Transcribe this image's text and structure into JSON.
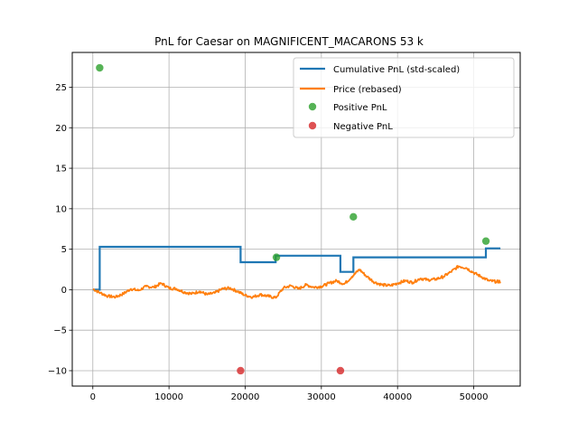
{
  "chart_data": {
    "type": "line",
    "title": "PnL for Caesar on MAGNIFICENT_MACARONS 53 k",
    "xlabel": "",
    "ylabel": "",
    "xlim": [
      -2700,
      56100
    ],
    "ylim": [
      -11.9,
      29.3
    ],
    "xticks": [
      0,
      10000,
      20000,
      30000,
      40000,
      50000
    ],
    "yticks": [
      -10,
      -5,
      0,
      5,
      10,
      15,
      20,
      25
    ],
    "grid": true,
    "legend_position": "top-right",
    "colors": {
      "cumulative": "#1f77b4",
      "price": "#ff7f0e",
      "positive": "#2ca02c",
      "negative": "#d62728"
    },
    "series": [
      {
        "name": "Cumulative PnL (std-scaled)",
        "type": "step",
        "points": [
          [
            0,
            0
          ],
          [
            900,
            0
          ],
          [
            900,
            5.3
          ],
          [
            19400,
            5.3
          ],
          [
            19400,
            3.4
          ],
          [
            24000,
            3.4
          ],
          [
            24000,
            4.2
          ],
          [
            32500,
            4.2
          ],
          [
            32500,
            2.2
          ],
          [
            34200,
            2.2
          ],
          [
            34200,
            4.0
          ],
          [
            51600,
            4.0
          ],
          [
            51600,
            5.1
          ],
          [
            53500,
            5.1
          ]
        ]
      },
      {
        "name": "Price (rebased)",
        "type": "line",
        "points": [
          [
            0,
            0.1
          ],
          [
            1000,
            -0.4
          ],
          [
            2000,
            -0.8
          ],
          [
            3000,
            -0.9
          ],
          [
            4000,
            -0.5
          ],
          [
            5000,
            0.1
          ],
          [
            6000,
            -0.1
          ],
          [
            7000,
            0.4
          ],
          [
            8000,
            0.3
          ],
          [
            9000,
            0.8
          ],
          [
            10000,
            0.2
          ],
          [
            11000,
            0.1
          ],
          [
            12000,
            -0.3
          ],
          [
            13000,
            -0.5
          ],
          [
            14000,
            -0.2
          ],
          [
            15000,
            -0.6
          ],
          [
            16000,
            -0.4
          ],
          [
            17000,
            0.1
          ],
          [
            18000,
            0.2
          ],
          [
            19000,
            -0.2
          ],
          [
            20000,
            -0.7
          ],
          [
            21000,
            -0.9
          ],
          [
            22000,
            -0.6
          ],
          [
            23000,
            -0.8
          ],
          [
            24000,
            -1.0
          ],
          [
            25000,
            0.2
          ],
          [
            26000,
            0.5
          ],
          [
            27000,
            0.1
          ],
          [
            28000,
            0.6
          ],
          [
            29000,
            0.3
          ],
          [
            30000,
            0.4
          ],
          [
            31000,
            0.8
          ],
          [
            32000,
            1.1
          ],
          [
            33000,
            0.7
          ],
          [
            34000,
            1.6
          ],
          [
            35000,
            2.5
          ],
          [
            36000,
            1.6
          ],
          [
            37000,
            0.9
          ],
          [
            38000,
            0.6
          ],
          [
            39000,
            0.5
          ],
          [
            40000,
            0.8
          ],
          [
            41000,
            1.1
          ],
          [
            42000,
            0.9
          ],
          [
            43000,
            1.4
          ],
          [
            44000,
            1.2
          ],
          [
            45000,
            1.3
          ],
          [
            46000,
            1.6
          ],
          [
            47000,
            2.2
          ],
          [
            48000,
            2.9
          ],
          [
            49000,
            2.7
          ],
          [
            50000,
            2.1
          ],
          [
            51000,
            1.6
          ],
          [
            52000,
            1.1
          ],
          [
            53000,
            1.0
          ],
          [
            53500,
            1.0
          ]
        ]
      },
      {
        "name": "Positive PnL",
        "type": "scatter",
        "points": [
          [
            900,
            27.4
          ],
          [
            24100,
            4.0
          ],
          [
            34200,
            9.0
          ],
          [
            51600,
            6.0
          ]
        ]
      },
      {
        "name": "Negative PnL",
        "type": "scatter",
        "points": [
          [
            19400,
            -10.0
          ],
          [
            32500,
            -10.0
          ]
        ]
      }
    ]
  }
}
